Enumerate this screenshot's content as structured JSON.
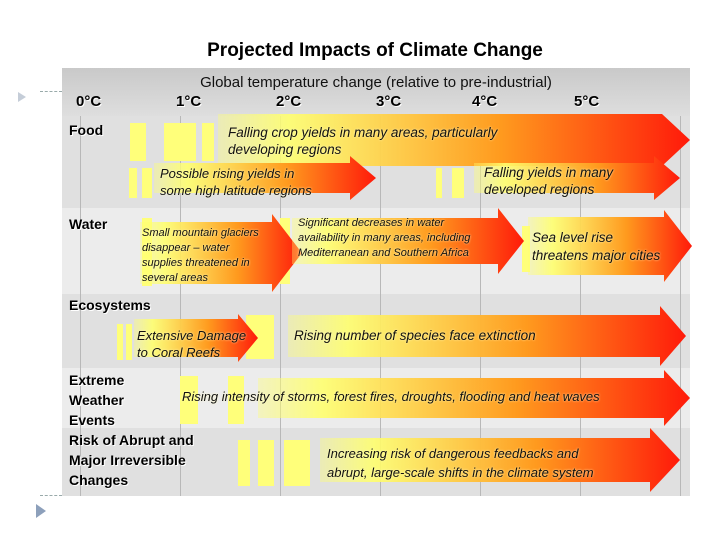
{
  "title": "Projected Impacts of Climate Change",
  "header": "Global temperature change (relative to pre-industrial)",
  "ticks": [
    "0°C",
    "1°C",
    "2°C",
    "3°C",
    "4°C",
    "5°C"
  ],
  "categories": {
    "food": "Food",
    "water": "Water",
    "ecosystems": "Ecosystems",
    "weather": [
      "Extreme",
      "Weather",
      "Events"
    ],
    "abrupt": [
      "Risk of Abrupt and",
      "Major Irreversible",
      "Changes"
    ]
  },
  "impacts": {
    "food_falling_developing": [
      "Falling crop yields in many areas, particularly",
      "developing regions"
    ],
    "food_rising_high_lat": [
      "Possible rising yields in",
      "some high latitude regions"
    ],
    "food_falling_developed": [
      "Falling yields in many",
      "developed regions"
    ],
    "water_glaciers": [
      "Small mountain glaciers",
      "disappear  – water",
      "supplies threatened in",
      "several areas"
    ],
    "water_decreases": [
      "Significant decreases in water",
      "availability in many areas, including",
      "Mediterranean and Southern Africa"
    ],
    "water_sea_level": [
      "Sea level rise",
      "threatens major cities"
    ],
    "eco_coral": [
      "Extensive Damage",
      "to Coral Reefs"
    ],
    "eco_species": "Rising number of species face extinction",
    "weather_storms": "Rising intensity of storms, forest fires, droughts, flooding and heat waves",
    "abrupt_feedbacks": [
      "Increasing risk of dangerous feedbacks and",
      "abrupt, large-scale shifts in the climate system"
    ]
  },
  "colors": {
    "arrow_start": "#ffff6e",
    "arrow_mid": "#ff9a1e",
    "arrow_end": "#ff1a0a",
    "bar": "#ffff7a",
    "band_dark": "#e0e0e0",
    "band_light": "#ececec"
  }
}
